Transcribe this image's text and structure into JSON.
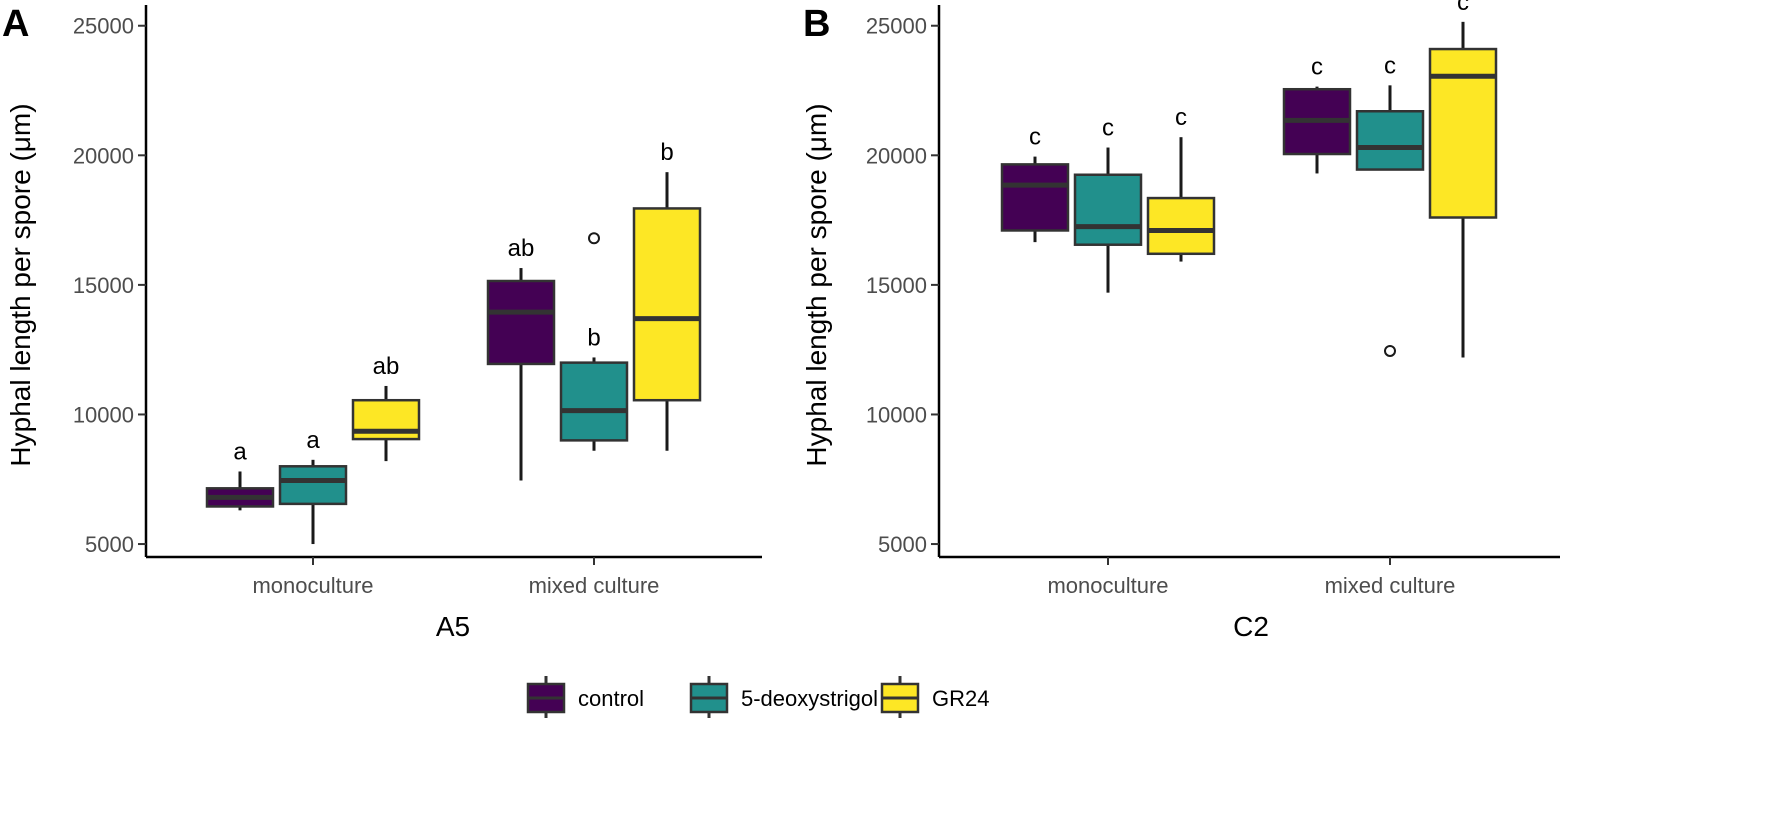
{
  "chart_data": [
    {
      "type": "box",
      "panel_label": "A",
      "title": "",
      "xlabel": "A5",
      "ylabel": "Hyphal length per spore (μm)",
      "ylim": [
        4500,
        25800
      ],
      "yticks": [
        5000,
        10000,
        15000,
        20000,
        25000
      ],
      "categories": [
        "monoculture",
        "mixed culture"
      ],
      "series": [
        {
          "name": "control",
          "boxes": [
            {
              "category": "monoculture",
              "whisker_low": 6300,
              "q1": 6450,
              "median": 6800,
              "q3": 7150,
              "whisker_high": 7800,
              "outliers": [],
              "label": "a"
            },
            {
              "category": "mixed culture",
              "whisker_low": 7450,
              "q1": 11950,
              "median": 13950,
              "q3": 15150,
              "whisker_high": 15650,
              "outliers": [],
              "label": "ab"
            }
          ]
        },
        {
          "name": "5-deoxystrigol",
          "boxes": [
            {
              "category": "monoculture",
              "whisker_low": 5000,
              "q1": 6550,
              "median": 7450,
              "q3": 8000,
              "whisker_high": 8250,
              "outliers": [],
              "label": "a"
            },
            {
              "category": "mixed culture",
              "whisker_low": 8600,
              "q1": 9000,
              "median": 10150,
              "q3": 12000,
              "whisker_high": 12200,
              "outliers": [
                16800
              ],
              "label": "b"
            }
          ]
        },
        {
          "name": "GR24",
          "boxes": [
            {
              "category": "monoculture",
              "whisker_low": 8200,
              "q1": 9050,
              "median": 9350,
              "q3": 10550,
              "whisker_high": 11100,
              "outliers": [],
              "label": "ab"
            },
            {
              "category": "mixed culture",
              "whisker_low": 8600,
              "q1": 10550,
              "median": 13700,
              "q3": 17950,
              "whisker_high": 19350,
              "outliers": [],
              "label": "b"
            }
          ]
        }
      ]
    },
    {
      "type": "box",
      "panel_label": "B",
      "title": "",
      "xlabel": "C2",
      "ylabel": "Hyphal length per spore (μm)",
      "ylim": [
        4500,
        25800
      ],
      "yticks": [
        5000,
        10000,
        15000,
        20000,
        25000
      ],
      "categories": [
        "monoculture",
        "mixed culture"
      ],
      "series": [
        {
          "name": "control",
          "boxes": [
            {
              "category": "monoculture",
              "whisker_low": 16650,
              "q1": 17100,
              "median": 18850,
              "q3": 19650,
              "whisker_high": 19950,
              "outliers": [],
              "label": "c"
            },
            {
              "category": "mixed culture",
              "whisker_low": 19300,
              "q1": 20050,
              "median": 21350,
              "q3": 22550,
              "whisker_high": 22650,
              "outliers": [],
              "label": "c"
            }
          ]
        },
        {
          "name": "5-deoxystrigol",
          "boxes": [
            {
              "category": "monoculture",
              "whisker_low": 14700,
              "q1": 16550,
              "median": 17250,
              "q3": 19250,
              "whisker_high": 20300,
              "outliers": [],
              "label": "c"
            },
            {
              "category": "mixed culture",
              "whisker_low": 19450,
              "q1": 19450,
              "median": 20300,
              "q3": 21700,
              "whisker_high": 22700,
              "outliers": [
                12450
              ],
              "label": "c"
            }
          ]
        },
        {
          "name": "GR24",
          "boxes": [
            {
              "category": "monoculture",
              "whisker_low": 15900,
              "q1": 16200,
              "median": 17100,
              "q3": 18350,
              "whisker_high": 20700,
              "outliers": [],
              "label": "c"
            },
            {
              "category": "mixed culture",
              "whisker_low": 12200,
              "q1": 17600,
              "median": 23050,
              "q3": 24100,
              "whisker_high": 25150,
              "outliers": [],
              "label": "c"
            }
          ]
        }
      ]
    }
  ],
  "legend": {
    "position": "bottom",
    "items": [
      {
        "name": "control",
        "color": "#440154"
      },
      {
        "name": "5-deoxystrigol",
        "color": "#21908C"
      },
      {
        "name": "GR24",
        "color": "#FDE725"
      }
    ]
  }
}
